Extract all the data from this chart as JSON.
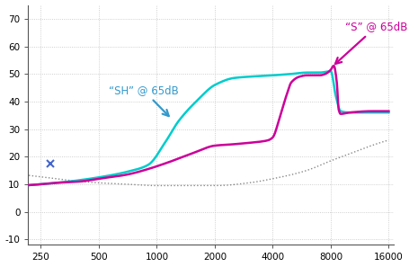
{
  "title": "",
  "xlabel": "",
  "ylabel": "",
  "ylim": [
    -12,
    75
  ],
  "xticks": [
    250,
    500,
    1000,
    2000,
    4000,
    8000,
    16000
  ],
  "xticklabels": [
    "250",
    "500",
    "1000",
    "2000",
    "4000",
    "8000",
    "16000"
  ],
  "yticks": [
    -10,
    0,
    10,
    20,
    30,
    40,
    50,
    60,
    70
  ],
  "bg_color": "#ffffff",
  "grid_color": "#bbbbbb",
  "s_color": "#cc0099",
  "sh_color": "#00cccc",
  "noise_color": "#888888",
  "annotation_s_color": "#cc0099",
  "annotation_sh_color": "#3399cc",
  "x_marker": 280,
  "y_marker": 17.5,
  "annotation_s_text": "“S” @ 65dB",
  "annotation_sh_text": "“SH” @ 65dB",
  "sh_knots_x": [
    200,
    250,
    300,
    400,
    500,
    700,
    900,
    1100,
    1300,
    1600,
    2000,
    2500,
    3000,
    4000,
    5000,
    6000,
    7000,
    8000,
    8500,
    9000,
    10000,
    13000,
    16000
  ],
  "sh_knots_y": [
    9.5,
    10.0,
    10.5,
    11.5,
    12.5,
    14.5,
    17.0,
    25.0,
    33.0,
    40.0,
    46.0,
    48.5,
    49.0,
    49.5,
    50.0,
    50.5,
    50.5,
    51.0,
    42.0,
    36.5,
    36.0,
    36.0,
    36.0
  ],
  "s_knots_x": [
    200,
    250,
    300,
    400,
    500,
    700,
    900,
    1100,
    1500,
    2000,
    2500,
    3000,
    3500,
    3800,
    4000,
    4300,
    4700,
    5000,
    5500,
    6000,
    7000,
    7500,
    8000,
    8300,
    8600,
    8800,
    9000,
    10000,
    13000,
    16000
  ],
  "s_knots_y": [
    9.5,
    10.0,
    10.5,
    11.0,
    12.0,
    13.5,
    15.5,
    17.5,
    21.0,
    24.0,
    24.5,
    25.0,
    25.5,
    26.0,
    27.0,
    33.0,
    42.0,
    47.0,
    49.0,
    49.5,
    49.5,
    50.0,
    51.5,
    53.0,
    47.0,
    37.0,
    35.5,
    36.0,
    36.5,
    36.5
  ],
  "noise_knots_x": [
    200,
    300,
    400,
    500,
    700,
    1000,
    1500,
    2000,
    3000,
    4000,
    6000,
    8000,
    10000,
    13000,
    16000
  ],
  "noise_knots_y": [
    13.5,
    12.0,
    11.0,
    10.5,
    10.0,
    9.5,
    9.5,
    9.5,
    10.5,
    12.0,
    15.0,
    18.5,
    21.0,
    24.0,
    26.0
  ]
}
